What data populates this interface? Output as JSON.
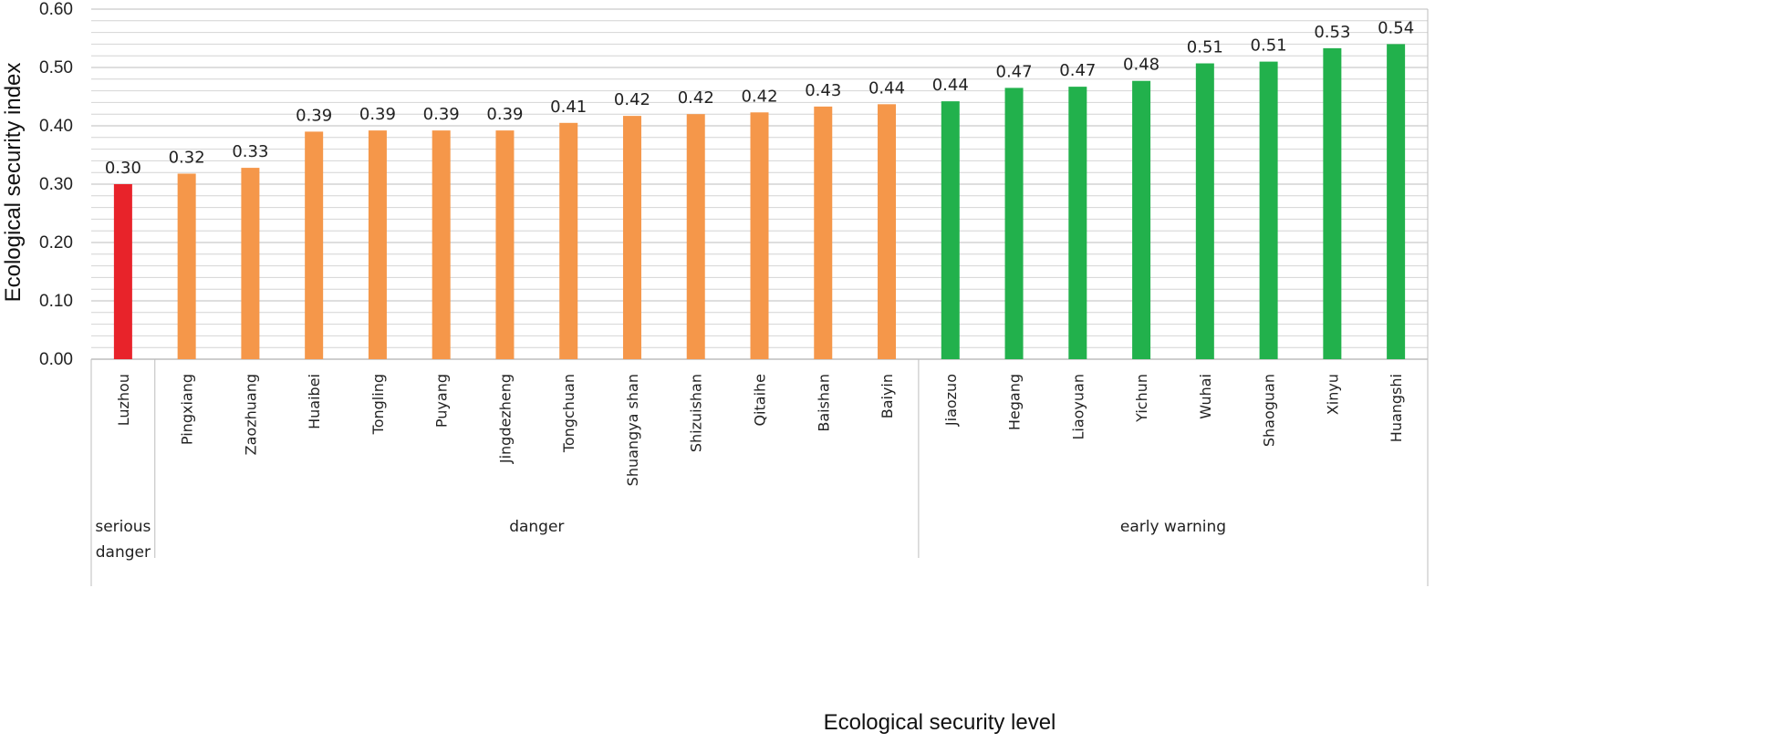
{
  "chart_data": {
    "type": "bar",
    "title": "",
    "xlabel": "Ecological security level",
    "ylabel": "Ecological security index",
    "ylim": [
      0,
      0.6
    ],
    "y_ticks": [
      "0.00",
      "0.10",
      "0.20",
      "0.30",
      "0.40",
      "0.50",
      "0.60"
    ],
    "gridlines": true,
    "categories": [
      "Luzhou",
      "Pingxiang",
      "Zaozhuang",
      "Huaibei",
      "Tongling",
      "Puyang",
      "Jingdezheng",
      "Tongchuan",
      "Shuangya shan",
      "Shizuishan",
      "Qitaihe",
      "Baishan",
      "Baiyin",
      "Jiaozuo",
      "Hegang",
      "Liaoyuan",
      "Yichun",
      "Wuhai",
      "Shaoguan",
      "Xinyu",
      "Huangshi"
    ],
    "values": [
      0.3,
      0.318,
      0.328,
      0.39,
      0.392,
      0.392,
      0.392,
      0.405,
      0.417,
      0.42,
      0.423,
      0.433,
      0.437,
      0.442,
      0.465,
      0.467,
      0.477,
      0.507,
      0.51,
      0.533,
      0.54
    ],
    "data_labels": [
      "0.30",
      "0.32",
      "0.33",
      "0.39",
      "0.39",
      "0.39",
      "0.39",
      "0.41",
      "0.42",
      "0.42",
      "0.42",
      "0.43",
      "0.44",
      "0.44",
      "0.47",
      "0.47",
      "0.48",
      "0.51",
      "0.51",
      "0.53",
      "0.54"
    ],
    "groups": [
      {
        "label_lines": [
          "serious",
          "danger"
        ],
        "start": 0,
        "end": 0,
        "color": "#e8232a"
      },
      {
        "label_lines": [
          "danger"
        ],
        "start": 1,
        "end": 12,
        "color": "#f5974a"
      },
      {
        "label_lines": [
          "early warning"
        ],
        "start": 13,
        "end": 20,
        "color": "#22b14c"
      }
    ]
  }
}
